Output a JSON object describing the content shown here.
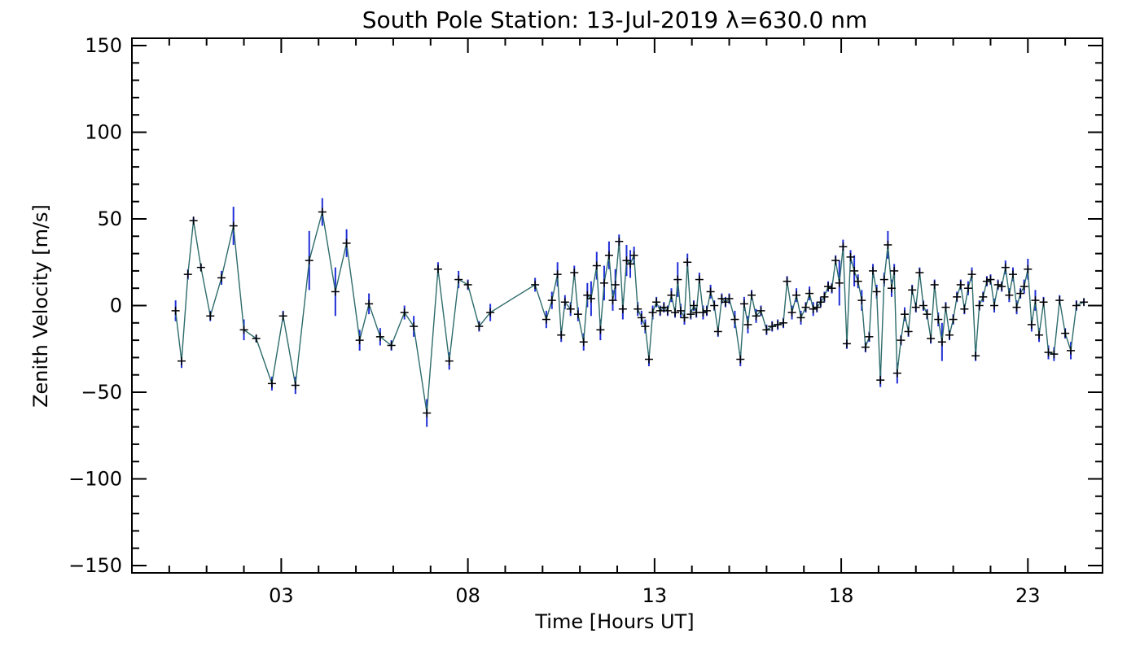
{
  "chart_data": {
    "type": "line",
    "title": "South Pole Station: 13-Jul-2019 λ=630.0 nm",
    "xlabel": "Time [Hours UT]",
    "ylabel": "Zenith Velocity [m/s]",
    "xlim": [
      -1,
      25
    ],
    "ylim": [
      -150,
      150
    ],
    "xticks": [
      3,
      8,
      13,
      18,
      23
    ],
    "xtick_labels": [
      "03",
      "08",
      "13",
      "18",
      "23"
    ],
    "yticks": [
      -150,
      -100,
      -50,
      0,
      50,
      100,
      150
    ],
    "ytick_labels": [
      "-150",
      "-100",
      "-50",
      "0",
      "50",
      "100",
      "150"
    ],
    "grid": false,
    "colors": {
      "line": "#2e6b6b",
      "errorbar": "#1f2fd6",
      "marker": "#000000",
      "axes": "#000000"
    },
    "series": [
      {
        "points": [
          {
            "x": 0.17,
            "y": -3,
            "err": 6
          },
          {
            "x": 0.33,
            "y": -32,
            "err": 4
          },
          {
            "x": 0.5,
            "y": 18,
            "err": 3
          },
          {
            "x": 0.65,
            "y": 49,
            "err": 2
          },
          {
            "x": 0.85,
            "y": 22,
            "err": 2
          },
          {
            "x": 1.1,
            "y": -6,
            "err": 3
          },
          {
            "x": 1.4,
            "y": 16,
            "err": 4
          },
          {
            "x": 1.72,
            "y": 46,
            "err": 11
          },
          {
            "x": 2.0,
            "y": -14,
            "err": 6
          },
          {
            "x": 2.33,
            "y": -19,
            "err": 2
          },
          {
            "x": 2.75,
            "y": -45,
            "err": 4
          },
          {
            "x": 3.05,
            "y": -6,
            "err": 3
          },
          {
            "x": 3.38,
            "y": -46,
            "err": 5
          },
          {
            "x": 3.75,
            "y": 26,
            "err": 17
          },
          {
            "x": 4.1,
            "y": 54,
            "err": 8
          },
          {
            "x": 4.45,
            "y": 8,
            "err": 14
          },
          {
            "x": 4.75,
            "y": 36,
            "err": 8
          },
          {
            "x": 5.1,
            "y": -20,
            "err": 6
          },
          {
            "x": 5.35,
            "y": 1,
            "err": 6
          },
          {
            "x": 5.65,
            "y": -18,
            "err": 5
          },
          {
            "x": 5.95,
            "y": -23,
            "err": 3
          },
          {
            "x": 6.3,
            "y": -4,
            "err": 4
          },
          {
            "x": 6.55,
            "y": -12,
            "err": 6
          },
          {
            "x": 6.9,
            "y": -62,
            "err": 8
          },
          {
            "x": 7.2,
            "y": 21,
            "err": 4
          },
          {
            "x": 7.5,
            "y": -32,
            "err": 5
          },
          {
            "x": 7.75,
            "y": 15,
            "err": 5
          },
          {
            "x": 8.0,
            "y": 12,
            "err": 3
          },
          {
            "x": 8.3,
            "y": -12,
            "err": 3
          },
          {
            "x": 8.6,
            "y": -4,
            "err": 5
          },
          {
            "x": 9.8,
            "y": 12,
            "err": 4
          },
          {
            "x": 10.1,
            "y": -8,
            "err": 5
          },
          {
            "x": 10.25,
            "y": 3,
            "err": 5
          },
          {
            "x": 10.4,
            "y": 18,
            "err": 7
          },
          {
            "x": 10.5,
            "y": -17,
            "err": 4
          },
          {
            "x": 10.6,
            "y": 2,
            "err": 4
          },
          {
            "x": 10.75,
            "y": -2,
            "err": 4
          },
          {
            "x": 10.85,
            "y": 19,
            "err": 4
          },
          {
            "x": 10.95,
            "y": -5,
            "err": 4
          },
          {
            "x": 11.1,
            "y": -21,
            "err": 5
          },
          {
            "x": 11.2,
            "y": 6,
            "err": 7
          },
          {
            "x": 11.3,
            "y": 4,
            "err": 10
          },
          {
            "x": 11.45,
            "y": 23,
            "err": 8
          },
          {
            "x": 11.55,
            "y": -14,
            "err": 6
          },
          {
            "x": 11.65,
            "y": 13,
            "err": 10
          },
          {
            "x": 11.78,
            "y": 29,
            "err": 8
          },
          {
            "x": 11.88,
            "y": 3,
            "err": 6
          },
          {
            "x": 11.95,
            "y": 12,
            "err": 9
          },
          {
            "x": 12.05,
            "y": 37,
            "err": 4
          },
          {
            "x": 12.15,
            "y": -2,
            "err": 6
          },
          {
            "x": 12.25,
            "y": 26,
            "err": 9
          },
          {
            "x": 12.35,
            "y": 24,
            "err": 8
          },
          {
            "x": 12.45,
            "y": 29,
            "err": 5
          },
          {
            "x": 12.55,
            "y": -2,
            "err": 4
          },
          {
            "x": 12.65,
            "y": -7,
            "err": 4
          },
          {
            "x": 12.75,
            "y": -12,
            "err": 4
          },
          {
            "x": 12.85,
            "y": -31,
            "err": 4
          },
          {
            "x": 12.95,
            "y": -4,
            "err": 4
          },
          {
            "x": 13.05,
            "y": 2,
            "err": 3
          },
          {
            "x": 13.15,
            "y": -3,
            "err": 3
          },
          {
            "x": 13.25,
            "y": -1,
            "err": 3
          },
          {
            "x": 13.35,
            "y": -3,
            "err": 3
          },
          {
            "x": 13.45,
            "y": 6,
            "err": 4
          },
          {
            "x": 13.55,
            "y": -4,
            "err": 3
          },
          {
            "x": 13.62,
            "y": 15,
            "err": 10
          },
          {
            "x": 13.7,
            "y": -3,
            "err": 4
          },
          {
            "x": 13.8,
            "y": -7,
            "err": 4
          },
          {
            "x": 13.88,
            "y": 25,
            "err": 5
          },
          {
            "x": 13.97,
            "y": -5,
            "err": 3
          },
          {
            "x": 14.05,
            "y": 0,
            "err": 3
          },
          {
            "x": 14.12,
            "y": -4,
            "err": 3
          },
          {
            "x": 14.2,
            "y": 15,
            "err": 4
          },
          {
            "x": 14.3,
            "y": -4,
            "err": 4
          },
          {
            "x": 14.4,
            "y": -3,
            "err": 3
          },
          {
            "x": 14.5,
            "y": 8,
            "err": 4
          },
          {
            "x": 14.6,
            "y": 0,
            "err": 3
          },
          {
            "x": 14.7,
            "y": -15,
            "err": 3
          },
          {
            "x": 14.8,
            "y": 4,
            "err": 3
          },
          {
            "x": 14.9,
            "y": 2,
            "err": 3
          },
          {
            "x": 15.0,
            "y": 4,
            "err": 3
          },
          {
            "x": 15.15,
            "y": -8,
            "err": 5
          },
          {
            "x": 15.3,
            "y": -31,
            "err": 4
          },
          {
            "x": 15.4,
            "y": 1,
            "err": 4
          },
          {
            "x": 15.5,
            "y": -11,
            "err": 5
          },
          {
            "x": 15.6,
            "y": 6,
            "err": 3
          },
          {
            "x": 15.72,
            "y": -6,
            "err": 4
          },
          {
            "x": 15.85,
            "y": -3,
            "err": 3
          },
          {
            "x": 16.0,
            "y": -14,
            "err": 3
          },
          {
            "x": 16.15,
            "y": -12,
            "err": 3
          },
          {
            "x": 16.3,
            "y": -11,
            "err": 3
          },
          {
            "x": 16.45,
            "y": -10,
            "err": 3
          },
          {
            "x": 16.55,
            "y": 14,
            "err": 3
          },
          {
            "x": 16.68,
            "y": -4,
            "err": 4
          },
          {
            "x": 16.8,
            "y": 6,
            "err": 4
          },
          {
            "x": 16.92,
            "y": -7,
            "err": 4
          },
          {
            "x": 17.05,
            "y": -1,
            "err": 3
          },
          {
            "x": 17.15,
            "y": 7,
            "err": 4
          },
          {
            "x": 17.25,
            "y": -2,
            "err": 4
          },
          {
            "x": 17.35,
            "y": -1,
            "err": 3
          },
          {
            "x": 17.45,
            "y": 2,
            "err": 3
          },
          {
            "x": 17.55,
            "y": 5,
            "err": 3
          },
          {
            "x": 17.65,
            "y": 11,
            "err": 3
          },
          {
            "x": 17.75,
            "y": 10,
            "err": 3
          },
          {
            "x": 17.85,
            "y": 26,
            "err": 3
          },
          {
            "x": 17.95,
            "y": 13,
            "err": 13
          },
          {
            "x": 18.05,
            "y": 34,
            "err": 4
          },
          {
            "x": 18.15,
            "y": -22,
            "err": 3
          },
          {
            "x": 18.25,
            "y": 28,
            "err": 4
          },
          {
            "x": 18.35,
            "y": 20,
            "err": 9
          },
          {
            "x": 18.45,
            "y": 14,
            "err": 4
          },
          {
            "x": 18.55,
            "y": 3,
            "err": 6
          },
          {
            "x": 18.65,
            "y": -24,
            "err": 3
          },
          {
            "x": 18.75,
            "y": -18,
            "err": 3
          },
          {
            "x": 18.85,
            "y": 20,
            "err": 4
          },
          {
            "x": 18.95,
            "y": 8,
            "err": 4
          },
          {
            "x": 19.05,
            "y": -43,
            "err": 4
          },
          {
            "x": 19.15,
            "y": 15,
            "err": 4
          },
          {
            "x": 19.25,
            "y": 35,
            "err": 8
          },
          {
            "x": 19.35,
            "y": 10,
            "err": 5
          },
          {
            "x": 19.42,
            "y": 20,
            "err": 4
          },
          {
            "x": 19.5,
            "y": -39,
            "err": 6
          },
          {
            "x": 19.6,
            "y": -20,
            "err": 3
          },
          {
            "x": 19.7,
            "y": -5,
            "err": 4
          },
          {
            "x": 19.8,
            "y": -15,
            "err": 3
          },
          {
            "x": 19.9,
            "y": 9,
            "err": 3
          },
          {
            "x": 20.0,
            "y": -1,
            "err": 3
          },
          {
            "x": 20.1,
            "y": 19,
            "err": 3
          },
          {
            "x": 20.2,
            "y": 0,
            "err": 3
          },
          {
            "x": 20.3,
            "y": -5,
            "err": 3
          },
          {
            "x": 20.4,
            "y": -19,
            "err": 3
          },
          {
            "x": 20.5,
            "y": 12,
            "err": 3
          },
          {
            "x": 20.6,
            "y": -8,
            "err": 4
          },
          {
            "x": 20.7,
            "y": -21,
            "err": 11
          },
          {
            "x": 20.8,
            "y": -1,
            "err": 3
          },
          {
            "x": 20.9,
            "y": -17,
            "err": 3
          },
          {
            "x": 21.0,
            "y": -8,
            "err": 3
          },
          {
            "x": 21.1,
            "y": 5,
            "err": 3
          },
          {
            "x": 21.2,
            "y": 12,
            "err": 3
          },
          {
            "x": 21.3,
            "y": -2,
            "err": 3
          },
          {
            "x": 21.4,
            "y": 10,
            "err": 4
          },
          {
            "x": 21.5,
            "y": 18,
            "err": 4
          },
          {
            "x": 21.6,
            "y": -29,
            "err": 3
          },
          {
            "x": 21.7,
            "y": 0,
            "err": 3
          },
          {
            "x": 21.8,
            "y": 5,
            "err": 3
          },
          {
            "x": 21.9,
            "y": 14,
            "err": 3
          },
          {
            "x": 22.0,
            "y": 15,
            "err": 3
          },
          {
            "x": 22.1,
            "y": 0,
            "err": 4
          },
          {
            "x": 22.2,
            "y": 12,
            "err": 3
          },
          {
            "x": 22.3,
            "y": 11,
            "err": 3
          },
          {
            "x": 22.4,
            "y": 22,
            "err": 4
          },
          {
            "x": 22.5,
            "y": 6,
            "err": 4
          },
          {
            "x": 22.6,
            "y": 18,
            "err": 4
          },
          {
            "x": 22.7,
            "y": -1,
            "err": 4
          },
          {
            "x": 22.8,
            "y": 7,
            "err": 3
          },
          {
            "x": 22.9,
            "y": 11,
            "err": 4
          },
          {
            "x": 23.0,
            "y": 21,
            "err": 6
          },
          {
            "x": 23.1,
            "y": -11,
            "err": 4
          },
          {
            "x": 23.2,
            "y": 3,
            "err": 6
          },
          {
            "x": 23.3,
            "y": -17,
            "err": 4
          },
          {
            "x": 23.42,
            "y": 2,
            "err": 3
          },
          {
            "x": 23.55,
            "y": -27,
            "err": 4
          },
          {
            "x": 23.7,
            "y": -28,
            "err": 4
          },
          {
            "x": 23.85,
            "y": 3,
            "err": 3
          },
          {
            "x": 24.0,
            "y": -16,
            "err": 3
          },
          {
            "x": 24.15,
            "y": -26,
            "err": 5
          },
          {
            "x": 24.3,
            "y": 0,
            "err": 3
          },
          {
            "x": 24.5,
            "y": 2,
            "err": 2
          }
        ]
      }
    ]
  }
}
